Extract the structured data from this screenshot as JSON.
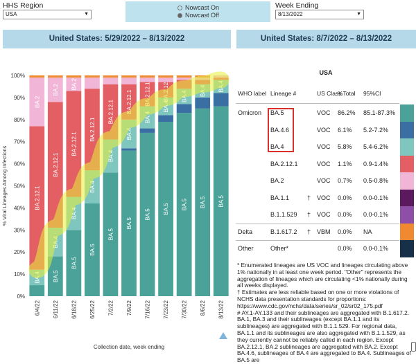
{
  "controls": {
    "region_label": "HHS Region",
    "region_value": "USA",
    "nowcast_on": "Nowcast On",
    "nowcast_off": "Nowcast Off",
    "week_label": "Week Ending",
    "week_value": "8/13/2022"
  },
  "left_header": "United States: 5/29/2022 – 8/13/2022",
  "right_header": "United States: 8/7/2022 – 8/13/2022",
  "chart_data": {
    "type": "bar",
    "stacked": true,
    "ylabel": "% Viral Lineages Among Infections",
    "xlabel": "Collection date, week ending",
    "ylim": [
      0,
      100
    ],
    "yticks": [
      "0%",
      "10%",
      "20%",
      "30%",
      "40%",
      "50%",
      "60%",
      "70%",
      "80%",
      "90%",
      "100%"
    ],
    "categories": [
      "6/4/22",
      "6/11/22",
      "6/18/22",
      "6/25/22",
      "7/2/22",
      "7/9/22",
      "7/16/22",
      "7/23/22",
      "7/30/22",
      "8/6/22",
      "8/13/22"
    ],
    "series": [
      {
        "name": "BA.5",
        "color": "#4aa298",
        "label": "BA.5",
        "values": [
          5,
          18,
          30,
          42,
          56,
          66,
          74,
          79,
          83,
          85,
          86
        ]
      },
      {
        "name": "BA.4.6",
        "color": "#3a6fa3",
        "label": "",
        "values": [
          0,
          0,
          0,
          0,
          0,
          1,
          2,
          3,
          4,
          5,
          6
        ]
      },
      {
        "name": "BA.4",
        "color": "#7fc6be",
        "label": "BA.4",
        "values": [
          7,
          13,
          15,
          15,
          15,
          13,
          10,
          8,
          7,
          6,
          6
        ]
      },
      {
        "name": "BA.2.12.1",
        "color": "#e35f64",
        "label": "BA.2.12.1",
        "values": [
          65,
          57,
          48,
          37,
          25,
          16,
          11,
          7,
          4,
          2,
          1
        ]
      },
      {
        "name": "BA.2",
        "color": "#f1b6d7",
        "label": "BA.2",
        "values": [
          22,
          11,
          6,
          5,
          3,
          3,
          2,
          2,
          1,
          1,
          1
        ]
      },
      {
        "name": "Delta",
        "color": "#f0892f",
        "label": "",
        "values": [
          1,
          1,
          1,
          1,
          1,
          1,
          1,
          1,
          1,
          1,
          0
        ]
      }
    ]
  },
  "table": {
    "title": "USA",
    "headers": [
      "WHO label",
      "Lineage #",
      "US Class",
      "%Total",
      "95%CI"
    ],
    "rows": [
      {
        "who": "Omicron",
        "lineage": "BA.5",
        "dagger": "",
        "cls": "VOC",
        "pct": "86.2%",
        "ci": "85.1-87.3%",
        "color": "#4aa298"
      },
      {
        "who": "",
        "lineage": "BA.4.6",
        "dagger": "",
        "cls": "VOC",
        "pct": "6.1%",
        "ci": "5.2-7.2%",
        "color": "#3a6fa3"
      },
      {
        "who": "",
        "lineage": "BA.4",
        "dagger": "",
        "cls": "VOC",
        "pct": "5.8%",
        "ci": "5.4-6.2%",
        "color": "#7fc6be"
      },
      {
        "who": "",
        "lineage": "BA.2.12.1",
        "dagger": "",
        "cls": "VOC",
        "pct": "1.1%",
        "ci": "0.9-1.4%",
        "color": "#e35f64"
      },
      {
        "who": "",
        "lineage": "BA.2",
        "dagger": "",
        "cls": "VOC",
        "pct": "0.7%",
        "ci": "0.5-0.8%",
        "color": "#f1b6d7"
      },
      {
        "who": "",
        "lineage": "BA.1.1",
        "dagger": "†",
        "cls": "VOC",
        "pct": "0.0%",
        "ci": "0.0-0.1%",
        "color": "#5b1a5e"
      },
      {
        "who": "",
        "lineage": "B.1.1.529",
        "dagger": "†",
        "cls": "VOC",
        "pct": "0.0%",
        "ci": "0.0-0.1%",
        "color": "#8e4fa8"
      },
      {
        "who": "Delta",
        "lineage": "B.1.617.2",
        "dagger": "†",
        "cls": "VBM",
        "pct": "0.0%",
        "ci": "NA",
        "color": "#f0892f"
      },
      {
        "who": "Other",
        "lineage": "Other*",
        "dagger": "",
        "cls": "",
        "pct": "0.0%",
        "ci": "0.0-0.1%",
        "color": "#17304a"
      }
    ]
  },
  "footnotes": {
    "f1": "*     Enumerated lineages are US VOC and lineages circulating above 1% nationally in at least one week period. \"Other\" represents the aggregation of lineages which are circulating <1% nationally during all weeks displayed.",
    "f2": "†     Estimates are less reliable based on one or more violations of NCHS data presentation standards for proportions: https://www.cdc.gov/nchs/data/series/sr_02/sr02_175.pdf",
    "f3": "#     AY.1-AY.133 and their sublineages are aggregated with B.1.617.2. BA.1, BA.3 and their sublineages (except BA.1.1 and its sublineages) are aggregated with B.1.1.529. For regional data, BA.1.1 and its sublineages are also aggregated with B.1.1.529, as they currently cannot be reliably called in each region. Except BA.2.12.1, BA.2 sublineages are aggregated with BA.2. Except BA.4.6, sublineages of BA.4 are aggregated to BA.4. Sublineages of BA.5 are"
  }
}
